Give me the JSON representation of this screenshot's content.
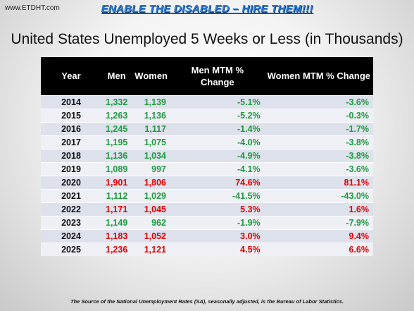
{
  "site_label": "www.ETDHT.com",
  "banner": "ENABLE THE DISABLED – HIRE THEM!!!",
  "title": "United States Unemployed 5 Weeks or Less (in Thousands)",
  "table": {
    "headers": [
      "Year",
      "Men",
      "Women",
      "Men MTM % Change",
      "Women MTM % Change"
    ],
    "rows": [
      {
        "year": "2014",
        "men": "1,332",
        "women": "1,139",
        "men_mtm": "-5.1%",
        "women_mtm": "-3.6%",
        "colors": [
          "g",
          "g",
          "g",
          "g"
        ]
      },
      {
        "year": "2015",
        "men": "1,263",
        "women": "1,136",
        "men_mtm": "-5.2%",
        "women_mtm": "-0.3%",
        "colors": [
          "g",
          "g",
          "g",
          "g"
        ]
      },
      {
        "year": "2016",
        "men": "1,245",
        "women": "1,117",
        "men_mtm": "-1.4%",
        "women_mtm": "-1.7%",
        "colors": [
          "g",
          "g",
          "g",
          "g"
        ]
      },
      {
        "year": "2017",
        "men": "1,195",
        "women": "1,075",
        "men_mtm": "-4.0%",
        "women_mtm": "-3.8%",
        "colors": [
          "g",
          "g",
          "g",
          "g"
        ]
      },
      {
        "year": "2018",
        "men": "1,136",
        "women": "1,034",
        "men_mtm": "-4.9%",
        "women_mtm": "-3.8%",
        "colors": [
          "g",
          "g",
          "g",
          "g"
        ]
      },
      {
        "year": "2019",
        "men": "1,089",
        "women": "997",
        "men_mtm": "-4.1%",
        "women_mtm": "-3.6%",
        "colors": [
          "g",
          "g",
          "g",
          "g"
        ]
      },
      {
        "year": "2020",
        "men": "1,901",
        "women": "1,806",
        "men_mtm": "74.6%",
        "women_mtm": "81.1%",
        "colors": [
          "r",
          "r",
          "r",
          "r"
        ]
      },
      {
        "year": "2021",
        "men": "1,112",
        "women": "1,029",
        "men_mtm": "-41.5%",
        "women_mtm": "-43.0%",
        "colors": [
          "g",
          "g",
          "g",
          "g"
        ]
      },
      {
        "year": "2022",
        "men": "1,171",
        "women": "1,045",
        "men_mtm": "5.3%",
        "women_mtm": "1.6%",
        "colors": [
          "r",
          "r",
          "r",
          "r"
        ]
      },
      {
        "year": "2023",
        "men": "1,149",
        "women": "962",
        "men_mtm": "-1.9%",
        "women_mtm": "-7.9%",
        "colors": [
          "g",
          "g",
          "g",
          "g"
        ]
      },
      {
        "year": "2024",
        "men": "1,183",
        "women": "1,052",
        "men_mtm": "3.0%",
        "women_mtm": "9.4%",
        "colors": [
          "r",
          "r",
          "r",
          "r"
        ]
      },
      {
        "year": "2025",
        "men": "1,236",
        "women": "1,121",
        "men_mtm": "4.5%",
        "women_mtm": "6.6%",
        "colors": [
          "r",
          "r",
          "r",
          "r"
        ]
      }
    ]
  },
  "colors": {
    "positive_change": "#e00000",
    "negative_change": "#1f9a3f",
    "header_bg": "#000000",
    "banner": "#2e7cd6"
  },
  "source": "The Source of the National Unemployment Rates (SA), seasonally adjusted, is the Bureau of Labor Statistics."
}
